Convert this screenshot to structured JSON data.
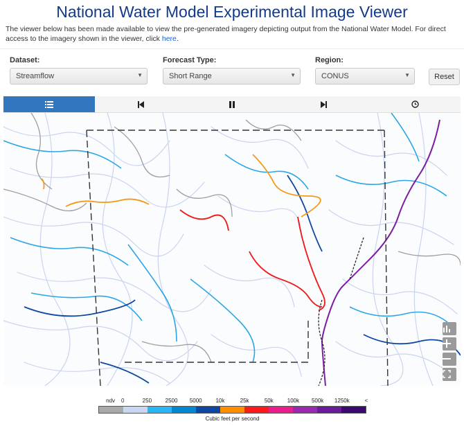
{
  "page": {
    "title": "National Water Model Experimental Image Viewer",
    "intro": "The viewer below has been made available to view the pre-generated imagery depicting output from the National Water Model. For direct access to the imagery shown in the viewer, click ",
    "intro_link": "here",
    "intro_end": "."
  },
  "controls": {
    "dataset": {
      "label": "Dataset:",
      "value": "Streamflow"
    },
    "forecast": {
      "label": "Forecast Type:",
      "value": "Short Range"
    },
    "region": {
      "label": "Region:",
      "value": "CONUS"
    },
    "reset_label": "Reset"
  },
  "toolbar": {
    "buttons": [
      "list-icon",
      "skip-back-icon",
      "pause-icon",
      "skip-forward-icon",
      "clock-icon"
    ],
    "active": "list-icon"
  },
  "map_controls": [
    "bar-chart-icon",
    "zoom-in-icon",
    "zoom-out-icon",
    "fullscreen-icon"
  ],
  "legend": {
    "ticks": [
      "ndv",
      "0",
      "250",
      "2500",
      "5000",
      "10k",
      "25k",
      "50k",
      "100k",
      "500k",
      "1250k",
      "<"
    ],
    "colors": [
      "#a9a9a9",
      "#c9d6f4",
      "#29b6f6",
      "#0288d1",
      "#0d47a1",
      "#ff8f00",
      "#ff1a1a",
      "#e91e8c",
      "#9c27b0",
      "#6a1b9a",
      "#3a0a6e"
    ],
    "unit": "Cubic feet per second"
  }
}
